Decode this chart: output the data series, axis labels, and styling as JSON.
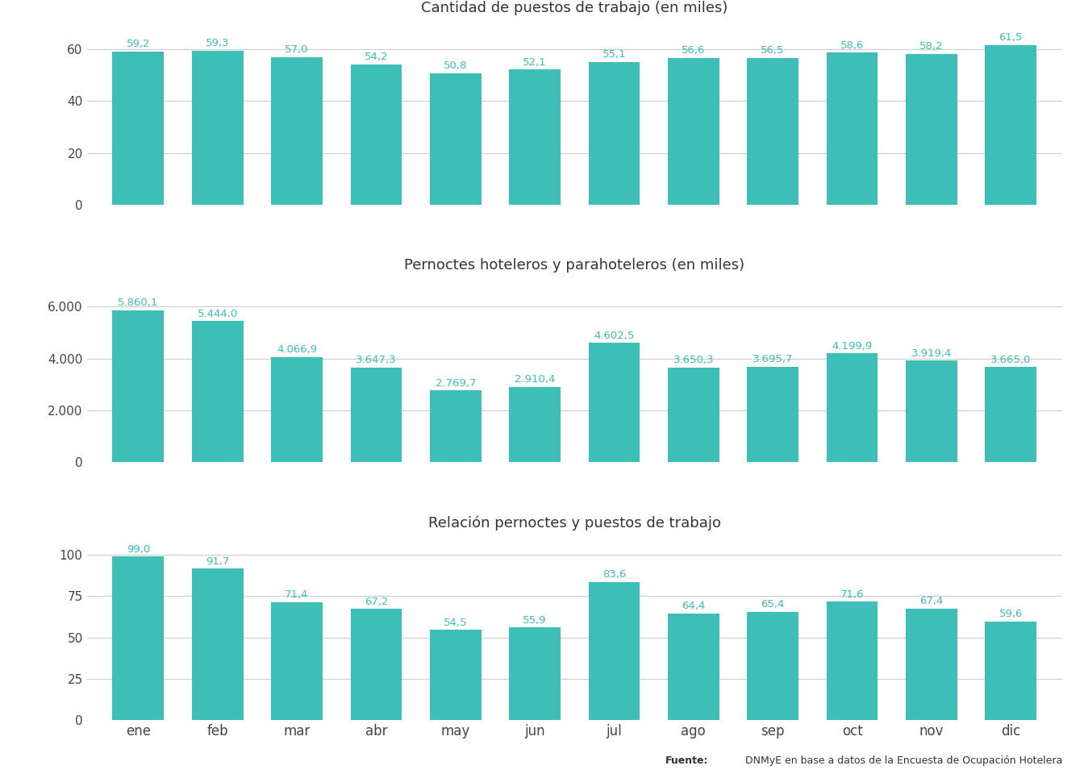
{
  "months": [
    "ene",
    "feb",
    "mar",
    "abr",
    "may",
    "jun",
    "jul",
    "ago",
    "sep",
    "oct",
    "nov",
    "dic"
  ],
  "puestos": [
    59.2,
    59.3,
    57.0,
    54.2,
    50.8,
    52.1,
    55.1,
    56.6,
    56.5,
    58.6,
    58.2,
    61.5
  ],
  "pernoctes": [
    5860.1,
    5444.0,
    4066.9,
    3647.3,
    2769.7,
    2910.4,
    4602.5,
    3650.3,
    3695.7,
    4199.9,
    3919.4,
    3665.0
  ],
  "relacion": [
    99.0,
    91.7,
    71.4,
    67.2,
    54.5,
    55.9,
    83.6,
    64.4,
    65.4,
    71.6,
    67.4,
    59.6
  ],
  "bar_color": "#3dbfb8",
  "title1": "Cantidad de puestos de trabajo (en miles)",
  "title2": "Pernoctes hoteleros y parahoteleros (en miles)",
  "title3": "Relación pernoctes y puestos de trabajo",
  "footnote_bold": "Fuente:",
  "footnote_text": " DNMyE en base a datos de la Encuesta de Ocupación Hotelera",
  "bg_color": "#ffffff",
  "grid_color": "#cccccc",
  "text_color": "#444444",
  "label_color": "#3dbfb8",
  "ylim1": [
    0,
    70
  ],
  "ylim2": [
    0,
    7000
  ],
  "ylim3": [
    0,
    110
  ],
  "yticks1": [
    0,
    20,
    40,
    60
  ],
  "yticks2": [
    0,
    2000,
    4000,
    6000
  ],
  "yticks3": [
    0,
    25,
    50,
    75,
    100
  ],
  "title_fontsize": 13,
  "label_fontsize": 9.5,
  "tick_fontsize": 11,
  "month_fontsize": 12,
  "footnote_fontsize": 9
}
